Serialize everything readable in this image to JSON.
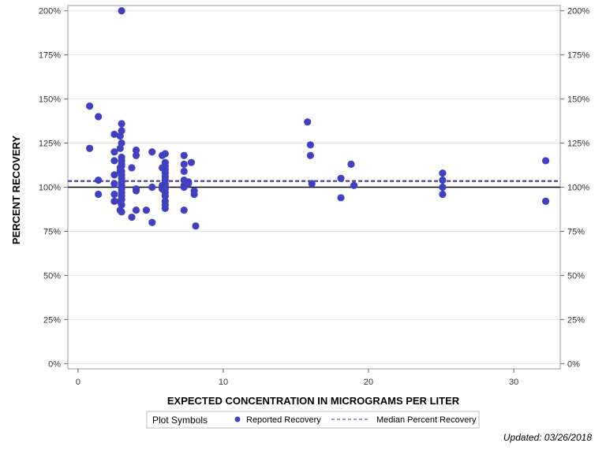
{
  "colors": {
    "marker": "#4040c0",
    "median_line": "#3a3ab8",
    "reference_line": "#000000",
    "grid": "#e2e2e2",
    "frame": "#999999"
  },
  "chart_data": {
    "type": "scatter",
    "xlabel": "EXPECTED CONCENTRATION IN MICROGRAMS PER LITER",
    "ylabel": "PERCENT RECOVERY",
    "xlim": [
      -0.7,
      33.2
    ],
    "ylim": [
      -3,
      203
    ],
    "xticks": [
      0,
      10,
      20,
      30
    ],
    "yticks": [
      0,
      25,
      50,
      75,
      100,
      125,
      150,
      175,
      200
    ],
    "ytick_suffix": "%",
    "grid": true,
    "reference_line": 100,
    "median_percent_recovery": 103.5,
    "legend": {
      "title": "Plot Symbols",
      "entries": [
        "Reported Recovery",
        "Median Percent Recovery"
      ],
      "placement": "bottom"
    },
    "series": [
      {
        "name": "Reported Recovery",
        "points": [
          [
            0.8,
            146
          ],
          [
            0.8,
            122
          ],
          [
            1.4,
            140
          ],
          [
            1.4,
            104
          ],
          [
            1.4,
            96
          ],
          [
            2.5,
            130
          ],
          [
            2.5,
            120
          ],
          [
            2.5,
            115
          ],
          [
            2.5,
            107
          ],
          [
            2.5,
            102
          ],
          [
            2.5,
            96
          ],
          [
            2.5,
            92
          ],
          [
            2.9,
            111
          ],
          [
            2.9,
            109
          ],
          [
            2.9,
            122
          ],
          [
            2.9,
            129
          ],
          [
            2.9,
            92
          ],
          [
            2.9,
            87
          ],
          [
            3.0,
            200
          ],
          [
            3.0,
            136
          ],
          [
            3.0,
            132
          ],
          [
            3.0,
            125
          ],
          [
            3.0,
            117
          ],
          [
            3.0,
            115
          ],
          [
            3.0,
            113
          ],
          [
            3.0,
            112
          ],
          [
            3.0,
            109
          ],
          [
            3.0,
            107
          ],
          [
            3.0,
            105
          ],
          [
            3.0,
            103
          ],
          [
            3.0,
            101
          ],
          [
            3.0,
            99
          ],
          [
            3.0,
            97
          ],
          [
            3.0,
            95
          ],
          [
            3.0,
            93
          ],
          [
            3.0,
            90
          ],
          [
            3.0,
            86
          ],
          [
            3.7,
            111
          ],
          [
            3.7,
            83
          ],
          [
            4.0,
            121
          ],
          [
            4.0,
            118
          ],
          [
            4.0,
            99
          ],
          [
            4.0,
            98
          ],
          [
            4.0,
            87
          ],
          [
            4.7,
            87
          ],
          [
            5.1,
            120
          ],
          [
            5.1,
            100
          ],
          [
            5.1,
            80
          ],
          [
            5.8,
            118
          ],
          [
            5.8,
            111
          ],
          [
            5.8,
            101
          ],
          [
            5.8,
            99
          ],
          [
            6.0,
            119
          ],
          [
            6.0,
            114
          ],
          [
            6.0,
            112
          ],
          [
            6.0,
            110
          ],
          [
            6.0,
            108
          ],
          [
            6.0,
            106
          ],
          [
            6.0,
            104
          ],
          [
            6.0,
            102
          ],
          [
            6.0,
            101
          ],
          [
            6.0,
            99
          ],
          [
            6.0,
            97
          ],
          [
            6.0,
            95
          ],
          [
            6.0,
            92
          ],
          [
            6.0,
            90
          ],
          [
            6.0,
            88
          ],
          [
            7.3,
            118
          ],
          [
            7.3,
            113
          ],
          [
            7.3,
            109
          ],
          [
            7.3,
            104
          ],
          [
            7.3,
            101
          ],
          [
            7.3,
            100
          ],
          [
            7.3,
            87
          ],
          [
            7.6,
            103
          ],
          [
            7.6,
            102
          ],
          [
            7.8,
            114
          ],
          [
            8.0,
            98
          ],
          [
            8.0,
            96
          ],
          [
            8.1,
            78
          ],
          [
            15.8,
            137
          ],
          [
            16.0,
            124
          ],
          [
            16.0,
            118
          ],
          [
            16.1,
            102
          ],
          [
            18.1,
            105
          ],
          [
            18.1,
            94
          ],
          [
            18.8,
            113
          ],
          [
            19.0,
            101
          ],
          [
            25.1,
            108
          ],
          [
            25.1,
            104
          ],
          [
            25.1,
            100
          ],
          [
            25.1,
            96
          ],
          [
            32.2,
            115
          ],
          [
            32.2,
            92
          ]
        ]
      }
    ]
  },
  "footer": {
    "updated": "Updated: 03/26/2018"
  }
}
